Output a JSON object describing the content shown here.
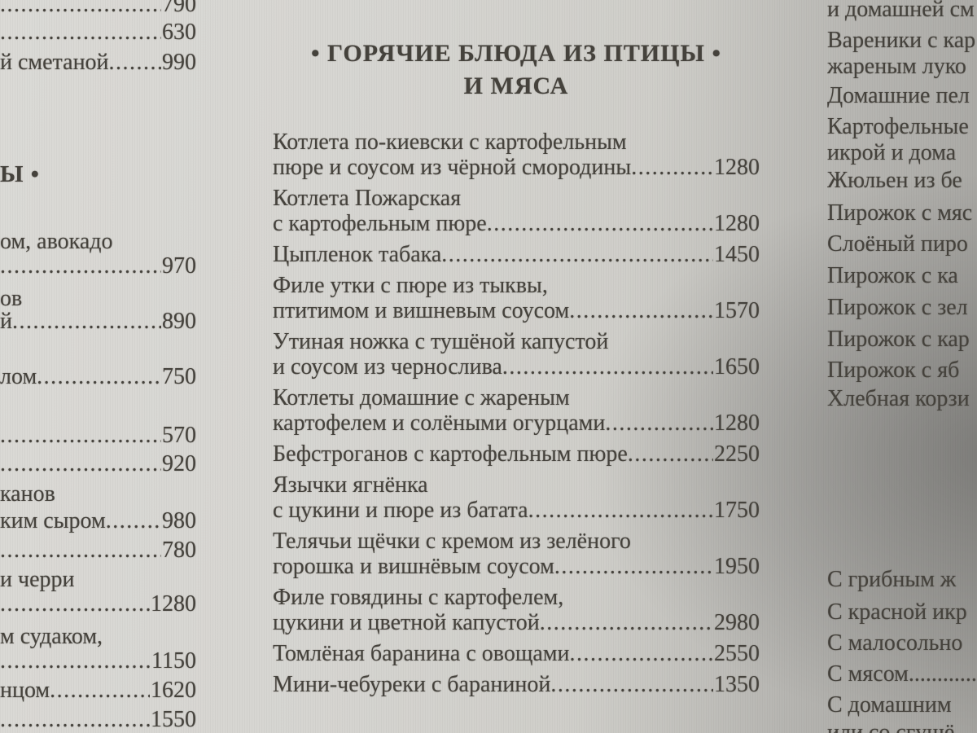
{
  "center": {
    "title_line1": "• ГОРЯЧИЕ БЛЮДА ИЗ ПТИЦЫ •",
    "title_line2": "И МЯСА",
    "items": [
      {
        "lines": [
          "Котлета по-киевски с картофельным",
          "пюре и соусом из чёрной смородины"
        ],
        "price": "1280"
      },
      {
        "lines": [
          "Котлета Пожарская",
          "с картофельным пюре"
        ],
        "price": "1280"
      },
      {
        "lines": [
          "Цыпленок табака"
        ],
        "price": "1450"
      },
      {
        "lines": [
          "Филе утки с пюре из тыквы,",
          "птитимом и вишневым соусом"
        ],
        "price": "1570"
      },
      {
        "lines": [
          "Утиная ножка с тушёной капустой",
          "и соусом из чернослива"
        ],
        "price": "1650"
      },
      {
        "lines": [
          "Котлеты домашние с жареным",
          "картофелем и солёными огурцами"
        ],
        "price": "1280"
      },
      {
        "lines": [
          "Бефстроганов с картофельным пюре"
        ],
        "price": "2250"
      },
      {
        "lines": [
          "Язычки ягнёнка",
          "с цукини и пюре из батата"
        ],
        "price": "1750"
      },
      {
        "lines": [
          "Телячьи щёчки с кремом из зелёного",
          "горошка и вишнёвым соусом"
        ],
        "price": "1950"
      },
      {
        "lines": [
          "Филе говядины с картофелем,",
          "цукини и цветной капустой"
        ],
        "price": "2980"
      },
      {
        "lines": [
          "Томлёная баранина с овощами"
        ],
        "price": "2550"
      },
      {
        "lines": [
          "Мини-чебуреки с бараниной"
        ],
        "price": "1350"
      }
    ]
  },
  "left_column": {
    "rows": [
      {
        "text": "",
        "price": "790"
      },
      {
        "text": "",
        "price": "630"
      },
      {
        "text": "й сметаной",
        "price": "990"
      },
      {
        "text": "Ы •",
        "header": true
      },
      {
        "text": "ом, авокадо"
      },
      {
        "text": "",
        "price": "970"
      },
      {
        "text": "ов"
      },
      {
        "text": "й",
        "price": "890"
      },
      {
        "text": "лом",
        "price": "750"
      },
      {
        "text": "",
        "price": "570"
      },
      {
        "text": "",
        "price": "920"
      },
      {
        "text": "канов"
      },
      {
        "text": "ким сыром",
        "price": "980"
      },
      {
        "text": "",
        "price": "780"
      },
      {
        "text": "и черри"
      },
      {
        "text": "",
        "price": "1280"
      },
      {
        "text": "м судаком,"
      },
      {
        "text": "",
        "price": "1150"
      },
      {
        "text": "нцом",
        "price": "1620"
      },
      {
        "text": "",
        "price": "1550"
      }
    ]
  },
  "right_column": {
    "rows": [
      {
        "text": "и домашней см"
      },
      {
        "text": "Вареники с кар"
      },
      {
        "text": "жареным луко"
      },
      {
        "text": "Домашние пел"
      },
      {
        "text": "Картофельные"
      },
      {
        "text": "икрой и дома"
      },
      {
        "text": "Жюльен из бе"
      },
      {
        "text": "Пирожок с мяс"
      },
      {
        "text": "Слоёный пиро"
      },
      {
        "text": "Пирожок с ка"
      },
      {
        "text": "Пирожок с зел"
      },
      {
        "text": "Пирожок с кар"
      },
      {
        "text": "Пирожок с яб"
      },
      {
        "text": "Хлебная корзи"
      },
      {
        "text": "С грибным ж"
      },
      {
        "text": "С красной икр"
      },
      {
        "text": "С малосольно"
      },
      {
        "text": "С мясом.............."
      },
      {
        "text": "С домашним"
      },
      {
        "text": "или со сгущё"
      }
    ]
  },
  "leader_dots": "........................................................................................................................",
  "colors": {
    "paper_light": "#dbdad6",
    "paper_dark": "#8f8f8b",
    "ink": "#45423c"
  }
}
